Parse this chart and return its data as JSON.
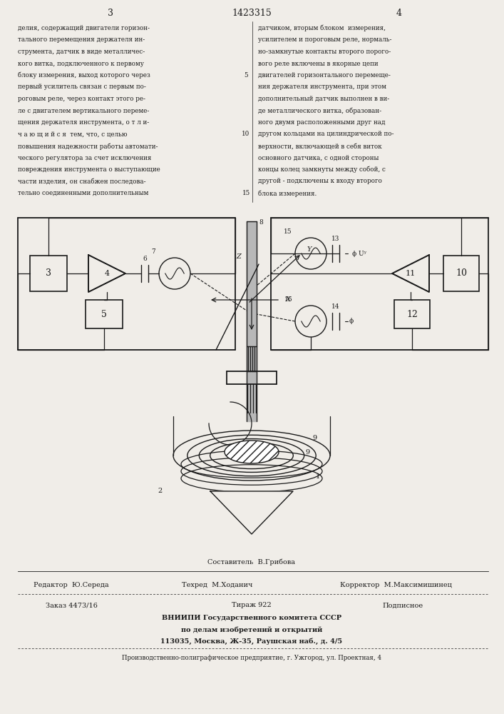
{
  "page_number_left": "3",
  "patent_number": "1423315",
  "page_number_right": "4",
  "background_color": "#f0ede8",
  "text_color": "#1a1a1a",
  "left_column_text": [
    "делия, содержащий двигатели горизон-",
    "тального перемещения держателя ин-",
    "струмента, датчик в виде металличес-",
    "кого витка, подключенного к первому",
    "блоку измерения, выход которого через",
    "первый усилитель связан с первым по-",
    "роговым реле, через контакт этого ре-",
    "ле с двигателем вертикального переме-",
    "щения держателя инструмента, о т л и-",
    "ч а ю щ и й с я  тем, что, с целью",
    "повышения надежности работы автомати-",
    "ческого регулятора за счет исключения",
    "повреждения инструмента о выступающие",
    "части изделия, он снабжен последова-",
    "тельно соединенными дополнительным"
  ],
  "right_column_text": [
    "датчиком, вторым блоком  измерения,",
    "усилителем и пороговым реле, нормаль-",
    "но-замкнутые контакты второго порого-",
    "вого реле включены в якорные цепи",
    "двигателей горизонтального перемеще-",
    "ния держателя инструмента, при этом",
    "дополнительный датчик выполнен в ви-",
    "де металлического витка, образован-",
    "ного двумя расположенными друг над",
    "другом кольцами на цилиндрической по-",
    "верхности, включающей в себя виток",
    "основного датчика, с одной стороны",
    "концы колец замкнуты между собой, с",
    "другой - подключены к входу второго",
    "блока измерения."
  ],
  "line_number_5": "5",
  "line_number_10": "10",
  "line_number_15": "15",
  "footer_line1": "Составитель  В.Грибова",
  "footer_line2_editor": "Редактор  Ю.Середа",
  "footer_line2_techred": "Техред  М.Ходанич",
  "footer_line2_corrector": "Корректор  М.Максимишинец",
  "footer_line3_zakaz": "Заказ 4473/16",
  "footer_line3_tiraz": "Тираж 922",
  "footer_line3_podpisnoe": "Подписное",
  "footer_line4": "ВНИИПИ Государственного комитета СССР",
  "footer_line5": "по делам изобретений и открытий",
  "footer_line6": "113035, Москва, Ж-35, Раушская наб., д. 4/5",
  "footer_line7": "Производственно-полиграфическое предприятие, г. Ужгород, ул. Проектная, 4"
}
